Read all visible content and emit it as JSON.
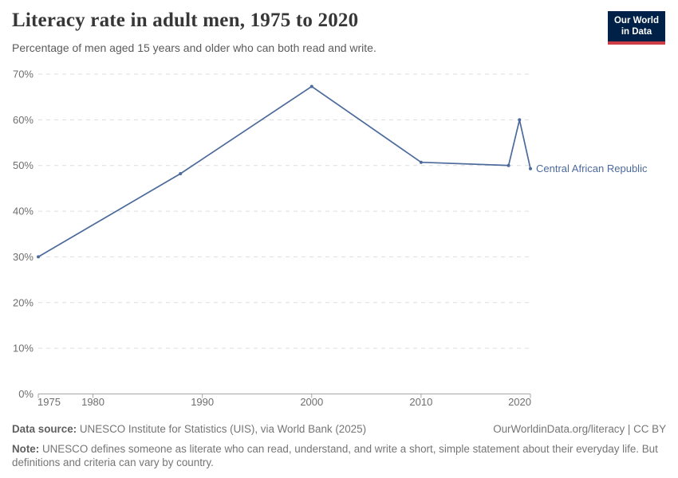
{
  "header": {
    "title": "Literacy rate in adult men, 1975 to 2020",
    "subtitle": "Percentage of men aged 15 years and older who can both read and write.",
    "logo": {
      "line1": "Our World",
      "line2": "in Data"
    }
  },
  "colors": {
    "line": "#4C6A9C",
    "logo_background": "#002147",
    "logo_underline": "#CC3D45",
    "grid": "#DDDDDD",
    "axis": "#A5A5A5",
    "tick_text": "#6E6E6E",
    "title_text": "#373737"
  },
  "chart_data": {
    "type": "line",
    "title": "Literacy rate in adult men, 1975 to 2020",
    "subtitle": "Percentage of men aged 15 years and older who can both read and write.",
    "series": [
      {
        "name": "Central African Republic",
        "color": "#4C6A9C",
        "points": [
          {
            "year": 1975,
            "value": 30
          },
          {
            "year": 1988,
            "value": 48.2
          },
          {
            "year": 2000,
            "value": 67.3
          },
          {
            "year": 2010,
            "value": 50.7
          },
          {
            "year": 2018,
            "value": 50
          },
          {
            "year": 2019,
            "value": 60
          },
          {
            "year": 2020,
            "value": 49.3
          }
        ]
      }
    ],
    "entity_label": "Central African Republic",
    "x_ticks": [
      1975,
      1980,
      1990,
      2000,
      2010,
      2020
    ],
    "y_ticks": [
      0,
      10,
      20,
      30,
      40,
      50,
      60,
      70
    ],
    "x_range": [
      1975,
      2020
    ],
    "y_range": [
      0,
      70
    ],
    "y_tick_suffix": "%",
    "grid": "horizontal-dashed",
    "legend_position": "end-of-line-label"
  },
  "footer": {
    "source_label": "Data source:",
    "source_text": "UNESCO Institute for Statistics (UIS), via World Bank (2025)",
    "license": "OurWorldinData.org/literacy | CC BY",
    "note_label": "Note:",
    "note_text": "UNESCO defines someone as literate who can read, understand, and write a short, simple statement about their everyday life. But definitions and criteria can vary by country."
  }
}
